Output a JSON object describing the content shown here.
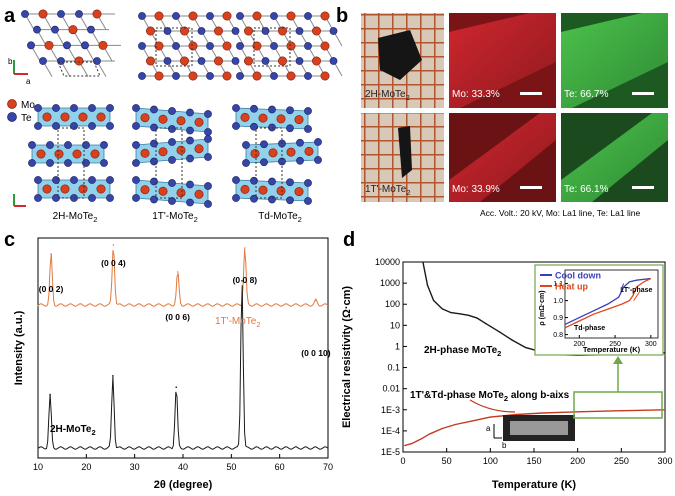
{
  "panels": {
    "a": "a",
    "b": "b",
    "c": "c",
    "d": "d"
  },
  "panel_a": {
    "legend": [
      {
        "element": "Mo",
        "color": "#d9411e"
      },
      {
        "element": "Te",
        "color": "#3545a8"
      }
    ],
    "axis_x": "a",
    "axis_y": "b",
    "phases": [
      {
        "name": "2H-MoTe",
        "sub": "2"
      },
      {
        "name": "1T'-MoTe",
        "sub": "2"
      },
      {
        "name": "Td-MoTe",
        "sub": "2"
      }
    ]
  },
  "panel_b": {
    "rows": [
      {
        "sample": "2H-MoTe",
        "sub": "2",
        "mo": "Mo: 33.3%",
        "te": "Te: 66.7%"
      },
      {
        "sample": "1T'-MoTe",
        "sub": "2",
        "mo": "Mo: 33.9%",
        "te": "Te: 66.1%"
      }
    ],
    "footer": "Acc. Volt.: 20 kV,   Mo: La1 line,   Te: La1 line",
    "mo_color": "#c4262c",
    "te_color": "#3fb04a"
  },
  "chart_data": [
    {
      "type": "line",
      "id": "c",
      "xlabel": "2θ (degree)",
      "ylabel": "Intensity (a.u.)",
      "xlim": [
        10,
        70
      ],
      "xticks": [
        10,
        20,
        30,
        40,
        50,
        60,
        70
      ],
      "series": [
        {
          "name": "1T'-MoTe₂",
          "label": "1T'-MoTe",
          "sub": "2",
          "color": "#e07a3e",
          "peaks": [
            [
              12.7,
              0.85
            ],
            [
              25.6,
              1.0
            ],
            [
              38.9,
              0.55
            ],
            [
              52.8,
              0.95
            ],
            [
              67.5,
              0.08
            ]
          ]
        },
        {
          "name": "2H-MoTe₂",
          "label": "2H-MoTe",
          "sub": "2",
          "color": "#1a1a1a",
          "peaks": [
            [
              12.5,
              0.28
            ],
            [
              25.5,
              0.38
            ],
            [
              38.6,
              0.32
            ],
            [
              52.2,
              0.88
            ]
          ]
        }
      ],
      "peak_labels": [
        "(0 0 2)",
        "(0 0 4)",
        "(0 0 6)",
        "(0 0 8)",
        "(0 0 10)"
      ]
    },
    {
      "type": "line",
      "id": "d",
      "xlabel": "Temperature (K)",
      "ylabel": "Electrical resistivity (Ω·cm)",
      "xlim": [
        0,
        300
      ],
      "ylim": [
        "1E-5",
        "10000"
      ],
      "xticks": [
        0,
        50,
        100,
        150,
        200,
        250,
        300
      ],
      "yticks": [
        "10000",
        "1000",
        "100",
        "10",
        "1",
        "0.1",
        "0.01",
        "1E-3",
        "1E-4",
        "1E-5"
      ],
      "series": [
        {
          "name": "2H-phase MoTe₂",
          "label": "2H-phase MoTe",
          "sub": "2",
          "color": "#1a1a1a",
          "x": [
            22,
            28,
            35,
            45,
            55,
            65,
            75,
            85,
            95,
            110,
            125,
            140,
            155,
            170,
            185,
            200,
            225,
            250,
            275,
            300
          ],
          "y": [
            15000,
            800,
            150,
            60,
            40,
            35,
            30,
            22,
            12,
            5,
            2,
            0.9,
            0.6,
            0.45,
            0.4,
            0.38,
            0.4,
            0.42,
            0.45,
            0.5
          ]
        },
        {
          "name": "1T'&Td-phase MoTe₂ along b-aixs",
          "label": "1T'&Td-phase MoTe",
          "sub": "2",
          "suffix": " along b-aixs",
          "color": "#c43a20",
          "x": [
            2,
            10,
            20,
            30,
            45,
            60,
            80,
            100,
            130,
            160,
            200,
            250,
            300
          ],
          "y": [
            2e-05,
            2.5e-05,
            4e-05,
            7e-05,
            0.00013,
            0.0002,
            0.0003,
            0.00045,
            0.0006,
            0.0007,
            0.0008,
            0.0009,
            0.001
          ]
        }
      ],
      "inset": {
        "xlabel": "Temperature (K)",
        "ylabel": "ρ (mΩ·cm)",
        "xticks": [
          200,
          250,
          300
        ],
        "yticks": [
          0.8,
          0.9,
          1.0,
          1.1
        ],
        "legend": [
          {
            "name": "Cool down",
            "color": "#3b3fb5"
          },
          {
            "name": "Heat up",
            "color": "#e0471a"
          }
        ],
        "phase_labels": [
          "1T'-phase",
          "Td-phase"
        ],
        "cool": {
          "x": [
            180,
            200,
            220,
            240,
            255,
            262,
            270,
            280,
            300
          ],
          "y": [
            0.86,
            0.9,
            0.94,
            0.98,
            1.02,
            1.08,
            1.11,
            1.12,
            1.13
          ]
        },
        "heat": {
          "x": [
            180,
            200,
            220,
            240,
            260,
            270,
            275,
            280,
            290,
            300
          ],
          "y": [
            0.84,
            0.88,
            0.92,
            0.95,
            0.98,
            1.0,
            1.03,
            1.08,
            1.11,
            1.13
          ]
        }
      },
      "inset_image_axes": [
        "a",
        "b"
      ]
    }
  ]
}
